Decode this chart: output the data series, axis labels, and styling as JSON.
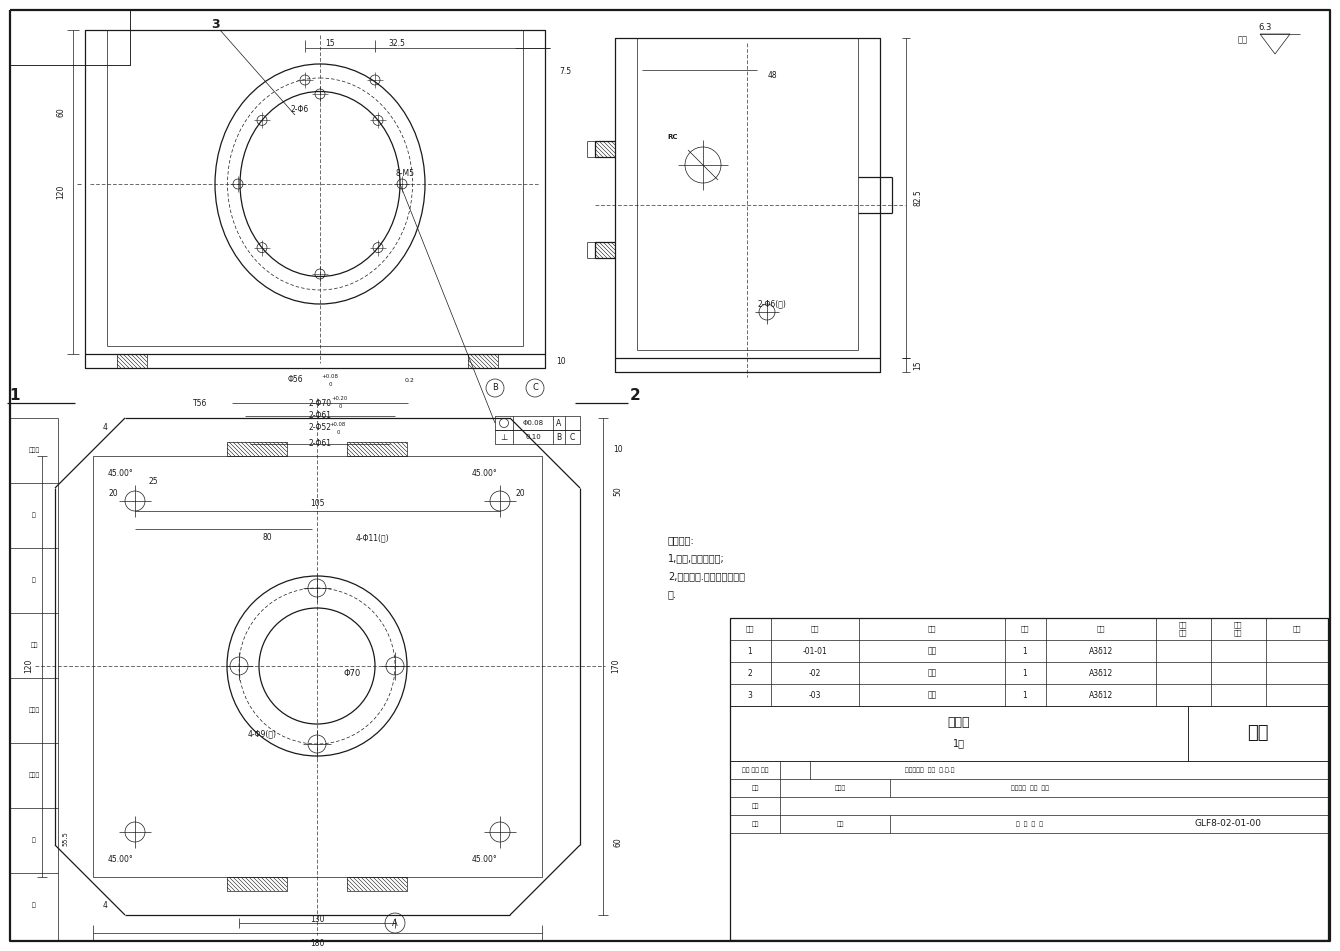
{
  "bg_color": "#ffffff",
  "line_color": "#1a1a1a",
  "title": "筱体",
  "drawing_no": "GLF8-02-01-00",
  "surface_roughness": "6.3",
  "tech_notes": [
    "技术要求:",
    "1,焼牢,焼后再加工;",
    "2,外表电镇.筱体内刷防锈锈",
    "漆."
  ],
  "bom": [
    {
      "seq": "3",
      "code": "-03",
      "name": "底板",
      "qty": "1",
      "material": "A3δ12"
    },
    {
      "seq": "2",
      "code": "-02",
      "name": "后板",
      "qty": "1",
      "material": "A3δ12"
    },
    {
      "seq": "1",
      "code": "-01-01",
      "name": "前板",
      "qty": "1",
      "material": "A3δ12"
    }
  ],
  "label_zuhan": "组焼件",
  "label_1jian": "1件",
  "title_label": "筱体",
  "figsize": [
    13.4,
    9.51
  ],
  "dpi": 100
}
